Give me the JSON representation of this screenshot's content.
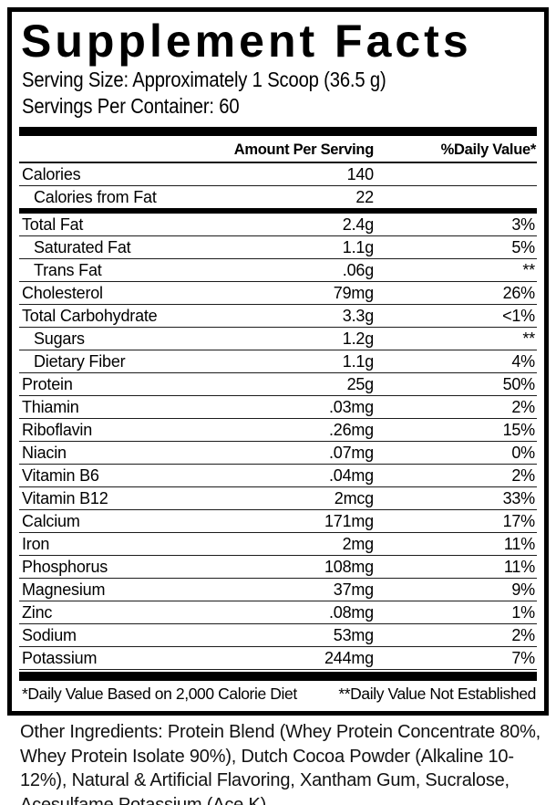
{
  "title": "Supplement Facts",
  "serving": {
    "size": "Serving Size: Approximately 1 Scoop (36.5 g)",
    "per_container": "Servings Per Container: 60"
  },
  "columns": {
    "amount_header": "Amount Per Serving",
    "dv_header": "%Daily Value*"
  },
  "rows": [
    {
      "name": "Calories",
      "amount": "140",
      "dv": "",
      "indent": false
    },
    {
      "name": "Calories from Fat",
      "amount": "22",
      "dv": "",
      "indent": true,
      "divider_after": "thick"
    },
    {
      "name": "Total Fat",
      "amount": "2.4g",
      "dv": "3%",
      "indent": false
    },
    {
      "name": "Saturated Fat",
      "amount": "1.1g",
      "dv": "5%",
      "indent": true
    },
    {
      "name": "Trans Fat",
      "amount": ".06g",
      "dv": "**",
      "indent": true
    },
    {
      "name": "Cholesterol",
      "amount": "79mg",
      "dv": "26%",
      "indent": false
    },
    {
      "name": "Total Carbohydrate",
      "amount": "3.3g",
      "dv": "<1%",
      "indent": false
    },
    {
      "name": "Sugars",
      "amount": "1.2g",
      "dv": "**",
      "indent": true
    },
    {
      "name": "Dietary Fiber",
      "amount": "1.1g",
      "dv": "4%",
      "indent": true
    },
    {
      "name": "Protein",
      "amount": "25g",
      "dv": "50%",
      "indent": false
    },
    {
      "name": "Thiamin",
      "amount": ".03mg",
      "dv": "2%",
      "indent": false
    },
    {
      "name": "Riboflavin",
      "amount": ".26mg",
      "dv": "15%",
      "indent": false
    },
    {
      "name": "Niacin",
      "amount": ".07mg",
      "dv": "0%",
      "indent": false
    },
    {
      "name": "Vitamin B6",
      "amount": ".04mg",
      "dv": "2%",
      "indent": false
    },
    {
      "name": "Vitamin B12",
      "amount": "2mcg",
      "dv": "33%",
      "indent": false
    },
    {
      "name": "Calcium",
      "amount": "171mg",
      "dv": "17%",
      "indent": false
    },
    {
      "name": "Iron",
      "amount": "2mg",
      "dv": "11%",
      "indent": false
    },
    {
      "name": "Phosphorus",
      "amount": "108mg",
      "dv": "11%",
      "indent": false
    },
    {
      "name": "Magnesium",
      "amount": "37mg",
      "dv": "9%",
      "indent": false
    },
    {
      "name": "Zinc",
      "amount": ".08mg",
      "dv": "1%",
      "indent": false
    },
    {
      "name": "Sodium",
      "amount": "53mg",
      "dv": "2%",
      "indent": false
    },
    {
      "name": "Potassium",
      "amount": "244mg",
      "dv": "7%",
      "indent": false
    }
  ],
  "footnotes": {
    "dv_basis": "*Daily Value Based on 2,000 Calorie Diet",
    "not_established": "**Daily Value Not Established"
  },
  "other_ingredients": "Other Ingredients: Protein Blend (Whey Protein Concentrate 80%, Whey Protein Isolate 90%), Dutch Cocoa Powder (Alkaline 10-12%), Natural & Artificial Flavoring, Xantham Gum, Sucralose, Acesulfame Potassium (Ace K)",
  "colors": {
    "text": "#000000",
    "background": "#ffffff",
    "border": "#000000"
  }
}
